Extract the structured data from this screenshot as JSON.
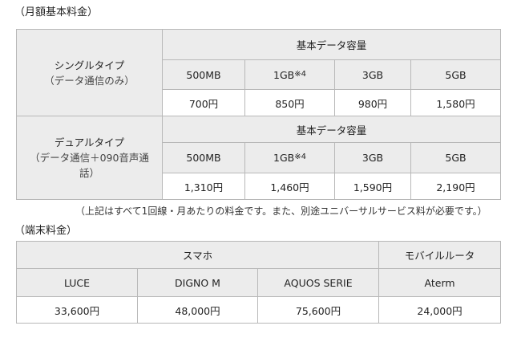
{
  "monthly": {
    "heading": "（月額基本料金）",
    "header_capacity": "基本データ容量",
    "plans": [
      {
        "name": "シングルタイプ",
        "sub": "（データ通信のみ）",
        "capacities": [
          "500MB",
          "1GB",
          "3GB",
          "5GB"
        ],
        "footnote_mark": "※4",
        "prices": [
          "700円",
          "850円",
          "980円",
          "1,580円"
        ]
      },
      {
        "name": "デュアルタイプ",
        "sub": "（データ通信＋090音声通話）",
        "capacities": [
          "500MB",
          "1GB",
          "3GB",
          "5GB"
        ],
        "footnote_mark": "※4",
        "prices": [
          "1,310円",
          "1,460円",
          "1,590円",
          "2,190円"
        ]
      }
    ],
    "note": "（上記はすべて1回線・月あたりの料金です。また、別途ユニバーサルサービス料が必要です。）"
  },
  "device": {
    "heading": "（端末料金）",
    "group_smartphone": "スマホ",
    "group_router": "モバイルルータ",
    "models": [
      "LUCE",
      "DIGNO M",
      "AQUOS SERIE",
      "Aterm"
    ],
    "prices": [
      "33,600円",
      "48,000円",
      "75,600円",
      "24,000円"
    ]
  }
}
